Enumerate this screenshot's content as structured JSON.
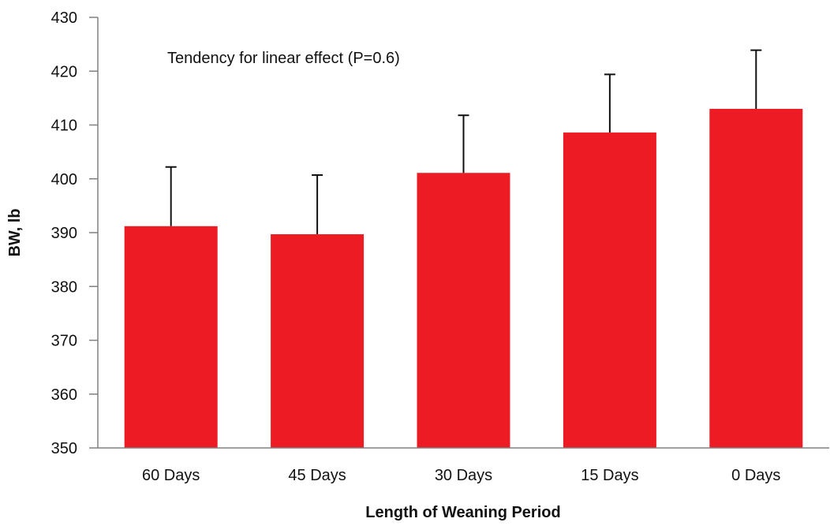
{
  "chart_data": {
    "type": "bar",
    "categories": [
      "60 Days",
      "45 Days",
      "30 Days",
      "15 Days",
      "0 Days"
    ],
    "values": [
      391.2,
      389.7,
      401.1,
      408.6,
      413.0
    ],
    "error_upper": [
      402.2,
      400.7,
      411.8,
      419.4,
      423.9
    ],
    "title": "",
    "xlabel": "Length of Weaning Period",
    "ylabel": "BW, lb",
    "ylim": [
      350,
      430
    ],
    "yticks": [
      350,
      360,
      370,
      380,
      390,
      400,
      410,
      420,
      430
    ],
    "annotation": "Tendency for linear effect (P=0.6)",
    "bar_color": "#ed1c24",
    "grid": false,
    "legend": "none"
  }
}
